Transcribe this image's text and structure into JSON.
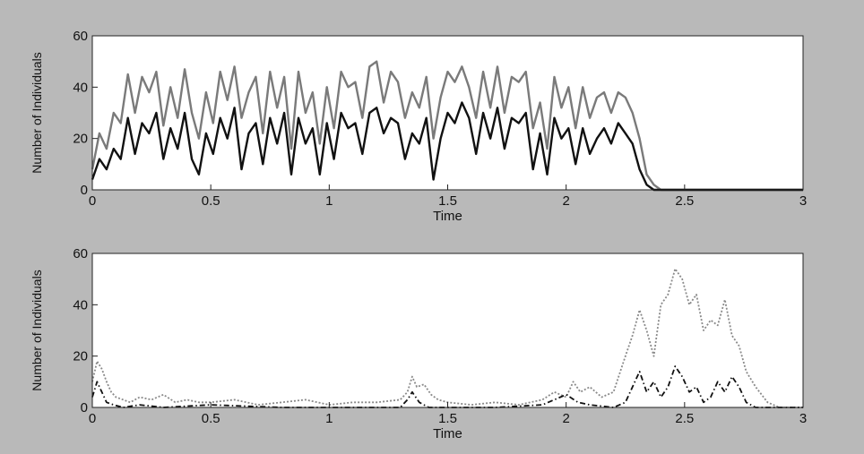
{
  "chart_data": [
    {
      "type": "line",
      "xlabel": "Time",
      "ylabel": "Number of Individuals",
      "xlim": [
        0,
        3
      ],
      "ylim": [
        0,
        60
      ],
      "xticks": [
        0,
        0.5,
        1,
        1.5,
        2,
        2.5,
        3
      ],
      "xtick_labels": [
        "0",
        "0.5",
        "1",
        "1.5",
        "2",
        "2.5",
        "3"
      ],
      "yticks": [
        0,
        20,
        40,
        60
      ],
      "ytick_labels": [
        "0",
        "20",
        "40",
        "60"
      ],
      "grid": false,
      "series": [
        {
          "color": "#7a7a7a",
          "style": "solid",
          "x": [
            0,
            0.03,
            0.06,
            0.09,
            0.12,
            0.15,
            0.18,
            0.21,
            0.24,
            0.27,
            0.3,
            0.33,
            0.36,
            0.39,
            0.42,
            0.45,
            0.48,
            0.51,
            0.54,
            0.57,
            0.6,
            0.63,
            0.66,
            0.69,
            0.72,
            0.75,
            0.78,
            0.81,
            0.84,
            0.87,
            0.9,
            0.93,
            0.96,
            0.99,
            1.02,
            1.05,
            1.08,
            1.11,
            1.14,
            1.17,
            1.2,
            1.23,
            1.26,
            1.29,
            1.32,
            1.35,
            1.38,
            1.41,
            1.44,
            1.47,
            1.5,
            1.53,
            1.56,
            1.59,
            1.62,
            1.65,
            1.68,
            1.71,
            1.74,
            1.77,
            1.8,
            1.83,
            1.86,
            1.89,
            1.92,
            1.95,
            1.98,
            2.01,
            2.04,
            2.07,
            2.1,
            2.13,
            2.16,
            2.19,
            2.22,
            2.25,
            2.28,
            2.31,
            2.34,
            2.37,
            2.4,
            3
          ],
          "y": [
            8,
            22,
            16,
            30,
            26,
            45,
            30,
            44,
            38,
            46,
            25,
            40,
            28,
            47,
            30,
            20,
            38,
            26,
            46,
            35,
            48,
            28,
            38,
            44,
            22,
            46,
            32,
            44,
            16,
            46,
            30,
            38,
            18,
            40,
            24,
            46,
            40,
            42,
            28,
            48,
            50,
            34,
            46,
            42,
            28,
            38,
            32,
            44,
            20,
            36,
            46,
            42,
            48,
            40,
            28,
            46,
            32,
            48,
            30,
            44,
            42,
            46,
            24,
            34,
            16,
            44,
            32,
            40,
            24,
            40,
            28,
            36,
            38,
            30,
            38,
            36,
            30,
            20,
            6,
            2,
            0,
            0
          ]
        },
        {
          "color": "#111111",
          "style": "solid",
          "x": [
            0,
            0.03,
            0.06,
            0.09,
            0.12,
            0.15,
            0.18,
            0.21,
            0.24,
            0.27,
            0.3,
            0.33,
            0.36,
            0.39,
            0.42,
            0.45,
            0.48,
            0.51,
            0.54,
            0.57,
            0.6,
            0.63,
            0.66,
            0.69,
            0.72,
            0.75,
            0.78,
            0.81,
            0.84,
            0.87,
            0.9,
            0.93,
            0.96,
            0.99,
            1.02,
            1.05,
            1.08,
            1.11,
            1.14,
            1.17,
            1.2,
            1.23,
            1.26,
            1.29,
            1.32,
            1.35,
            1.38,
            1.41,
            1.44,
            1.47,
            1.5,
            1.53,
            1.56,
            1.59,
            1.62,
            1.65,
            1.68,
            1.71,
            1.74,
            1.77,
            1.8,
            1.83,
            1.86,
            1.89,
            1.92,
            1.95,
            1.98,
            2.01,
            2.04,
            2.07,
            2.1,
            2.13,
            2.16,
            2.19,
            2.22,
            2.25,
            2.28,
            2.31,
            2.34,
            2.37,
            3
          ],
          "y": [
            4,
            12,
            8,
            16,
            12,
            28,
            14,
            26,
            22,
            30,
            12,
            24,
            16,
            30,
            12,
            6,
            22,
            14,
            28,
            20,
            32,
            8,
            22,
            26,
            10,
            28,
            18,
            30,
            6,
            28,
            18,
            24,
            6,
            26,
            12,
            30,
            24,
            26,
            14,
            30,
            32,
            22,
            28,
            26,
            12,
            22,
            18,
            28,
            4,
            20,
            30,
            26,
            34,
            28,
            14,
            30,
            20,
            32,
            16,
            28,
            26,
            30,
            8,
            22,
            6,
            28,
            20,
            24,
            10,
            24,
            14,
            20,
            24,
            18,
            26,
            22,
            18,
            8,
            2,
            0,
            0
          ]
        }
      ]
    },
    {
      "type": "line",
      "xlabel": "Time",
      "ylabel": "Number of Individuals",
      "xlim": [
        0,
        3
      ],
      "ylim": [
        0,
        60
      ],
      "xticks": [
        0,
        0.5,
        1,
        1.5,
        2,
        2.5,
        3
      ],
      "xtick_labels": [
        "0",
        "0.5",
        "1",
        "1.5",
        "2",
        "2.5",
        "3"
      ],
      "yticks": [
        0,
        20,
        40,
        60
      ],
      "ytick_labels": [
        "0",
        "20",
        "40",
        "60"
      ],
      "grid": false,
      "series": [
        {
          "color": "#8a8a8a",
          "style": "dotted",
          "x": [
            0,
            0.02,
            0.04,
            0.06,
            0.08,
            0.1,
            0.13,
            0.16,
            0.2,
            0.25,
            0.3,
            0.35,
            0.4,
            0.45,
            0.5,
            0.6,
            0.7,
            0.8,
            0.9,
            1.0,
            1.1,
            1.2,
            1.3,
            1.33,
            1.35,
            1.37,
            1.4,
            1.43,
            1.46,
            1.5,
            1.6,
            1.7,
            1.8,
            1.9,
            1.95,
            2.0,
            2.03,
            2.06,
            2.1,
            2.15,
            2.2,
            2.25,
            2.28,
            2.31,
            2.34,
            2.37,
            2.4,
            2.43,
            2.46,
            2.49,
            2.52,
            2.55,
            2.58,
            2.61,
            2.64,
            2.67,
            2.7,
            2.73,
            2.76,
            2.8,
            2.85,
            2.9,
            3
          ],
          "y": [
            10,
            18,
            15,
            10,
            6,
            4,
            3,
            2,
            4,
            3,
            5,
            2,
            3,
            2,
            2,
            3,
            1,
            2,
            3,
            1,
            2,
            2,
            3,
            6,
            12,
            8,
            9,
            5,
            3,
            2,
            1,
            2,
            1,
            3,
            6,
            4,
            10,
            6,
            8,
            4,
            6,
            20,
            28,
            38,
            30,
            20,
            40,
            44,
            54,
            50,
            40,
            44,
            30,
            34,
            32,
            42,
            28,
            24,
            14,
            8,
            2,
            0,
            0
          ]
        },
        {
          "color": "#111111",
          "style": "dashdot",
          "x": [
            0,
            0.02,
            0.04,
            0.06,
            0.09,
            0.13,
            0.2,
            0.3,
            0.5,
            0.8,
            1.0,
            1.3,
            1.33,
            1.35,
            1.38,
            1.42,
            1.5,
            1.7,
            1.9,
            1.95,
            2.0,
            2.05,
            2.1,
            2.2,
            2.25,
            2.28,
            2.31,
            2.34,
            2.37,
            2.4,
            2.43,
            2.46,
            2.49,
            2.52,
            2.55,
            2.58,
            2.61,
            2.64,
            2.67,
            2.7,
            2.73,
            2.76,
            2.8,
            3
          ],
          "y": [
            4,
            10,
            6,
            2,
            1,
            0,
            1,
            0,
            1,
            0,
            0,
            0,
            3,
            6,
            2,
            0,
            0,
            0,
            1,
            3,
            5,
            2,
            1,
            0,
            2,
            8,
            14,
            6,
            10,
            4,
            8,
            16,
            12,
            6,
            8,
            2,
            4,
            10,
            6,
            12,
            8,
            2,
            0,
            0
          ]
        }
      ]
    }
  ]
}
